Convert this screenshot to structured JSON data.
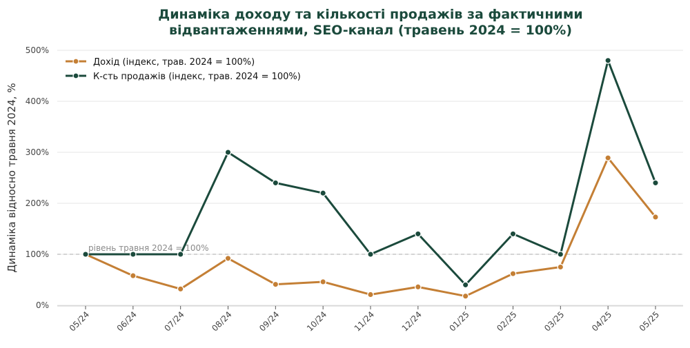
{
  "chart_data": {
    "type": "line",
    "title": [
      "Динаміка доходу та кількості продажів за фактичними",
      "відвантаженнями, SEO-канал (травень 2024 = 100%)"
    ],
    "ylabel": "Динаміка відносно травня 2024, %",
    "xlabel": "",
    "categories": [
      "05/24",
      "06/24",
      "07/24",
      "08/24",
      "09/24",
      "10/24",
      "11/24",
      "12/24",
      "01/25",
      "02/25",
      "03/25",
      "04/25",
      "05/25"
    ],
    "ylim": [
      0,
      500
    ],
    "yticks": [
      0,
      100,
      200,
      300,
      400,
      500
    ],
    "ytick_labels": [
      "0%",
      "100%",
      "200%",
      "300%",
      "400%",
      "500%"
    ],
    "grid": true,
    "legend_position": "top-left",
    "reference_line": {
      "value": 100,
      "label": "рівень травня 2024 = 100%",
      "color": "#bbbbbb"
    },
    "series": [
      {
        "name": "Дохід (індекс, трав. 2024 = 100%)",
        "color": "#c47f35",
        "values": [
          100,
          58,
          32,
          92,
          41,
          46,
          21,
          36,
          18,
          62,
          75,
          289,
          173
        ]
      },
      {
        "name": "К-сть продажів (індекс, трав. 2024 = 100%)",
        "color": "#1b4a3c",
        "values": [
          100,
          100,
          100,
          300,
          240,
          220,
          100,
          140,
          40,
          140,
          100,
          480,
          240
        ]
      }
    ]
  }
}
